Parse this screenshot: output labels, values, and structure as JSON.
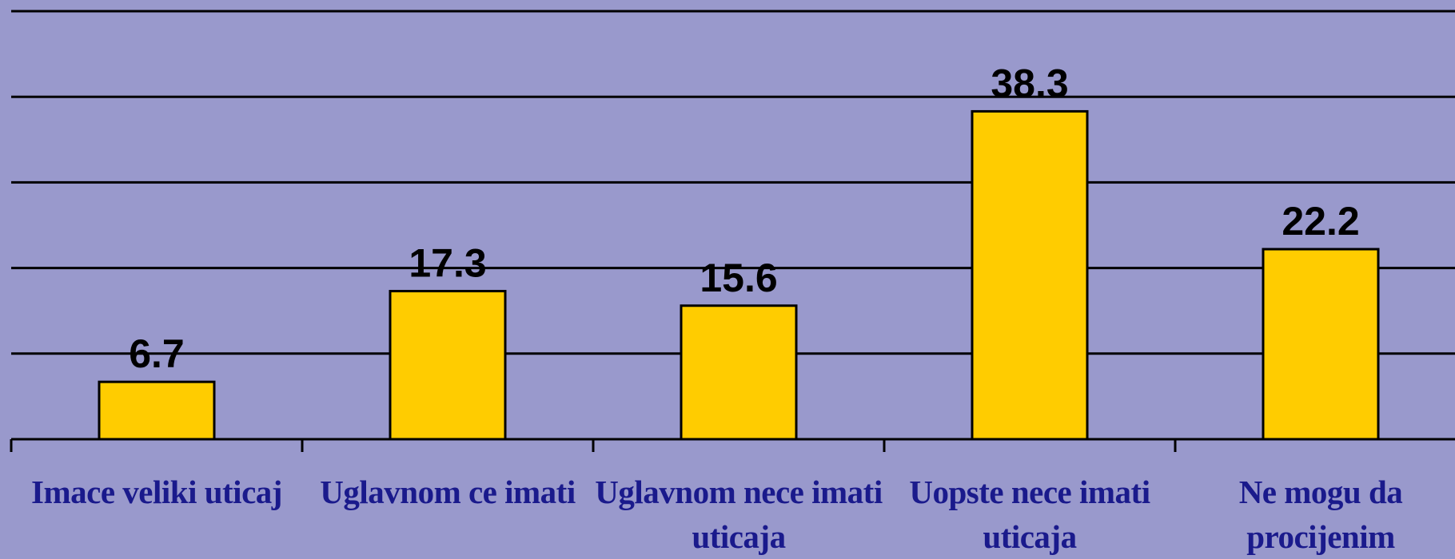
{
  "chart_data": {
    "type": "bar",
    "categories": [
      "Imace veliki uticaj",
      "Uglavnom ce imati",
      "Uglavnom nece imati uticaja",
      "Uopste nece imati uticaja",
      "Ne mogu da procijenim"
    ],
    "values": [
      6.7,
      17.3,
      15.6,
      38.3,
      22.2
    ],
    "color": "#ffcc00",
    "ylim": [
      0,
      50
    ],
    "yticks": [
      0,
      10,
      20,
      30,
      40,
      50
    ],
    "grid": true
  }
}
